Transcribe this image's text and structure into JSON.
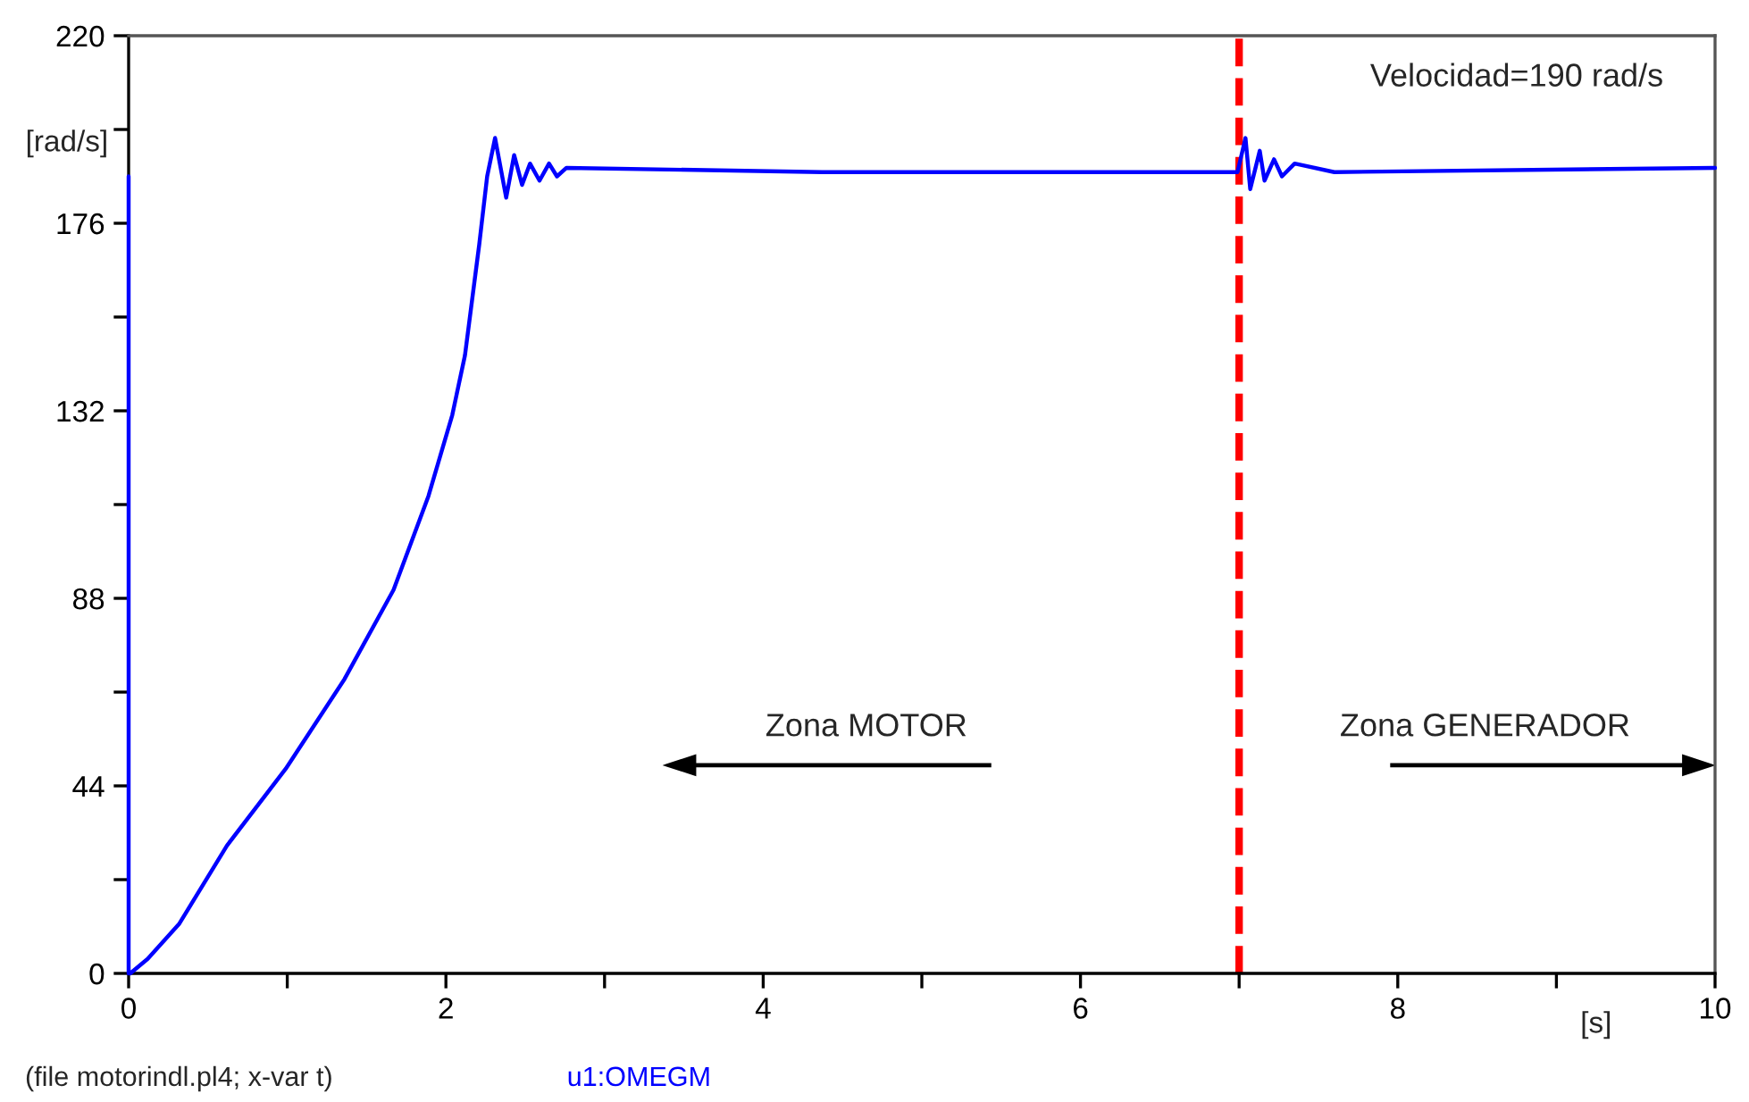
{
  "chart_data": {
    "type": "line",
    "ylabel": "[rad/s]",
    "xlabel": "[s]",
    "xlim": [
      0,
      10
    ],
    "ylim": [
      0,
      220
    ],
    "xticks": [
      0,
      {
        "value": 1,
        "label": null
      },
      2,
      {
        "value": 3,
        "label": null
      },
      4,
      {
        "value": 5,
        "label": null
      },
      6,
      {
        "value": 7,
        "label": null
      },
      8,
      {
        "value": 9,
        "label": null
      },
      10
    ],
    "yticks": [
      0,
      {
        "value": 22,
        "label": null
      },
      44,
      {
        "value": 66,
        "label": null
      },
      88,
      {
        "value": 110,
        "label": null
      },
      132,
      {
        "value": 154,
        "label": null
      },
      176,
      {
        "value": 198,
        "label": null
      },
      220
    ],
    "grid": false,
    "line_style": "solid",
    "marker": "none",
    "series": [
      {
        "name": "u1:OMEGM",
        "color": "#0000ff",
        "x": [
          0,
          0,
          0.01,
          0.12,
          0.32,
          0.62,
          0.99,
          1.36,
          1.67,
          1.89,
          2.04,
          2.12,
          2.21,
          2.26,
          2.31,
          2.38,
          2.43,
          2.48,
          2.53,
          2.59,
          2.65,
          2.7,
          2.76,
          4.37,
          6.99,
          7.04,
          7.07,
          7.13,
          7.16,
          7.22,
          7.27,
          7.35,
          7.6,
          10
        ],
        "values": [
          187,
          0,
          0,
          3.4,
          11.7,
          30,
          48,
          69,
          90,
          112,
          131,
          145,
          171,
          187,
          196,
          182,
          192,
          185,
          190,
          186,
          190,
          187,
          189,
          188,
          188,
          196,
          184,
          193,
          186,
          191,
          187,
          190,
          188,
          189
        ]
      }
    ],
    "ref_lines": [
      {
        "axis": "x",
        "value": 7,
        "color": "#ff0000",
        "line_style": "dashed"
      }
    ],
    "annotations": [
      "Velocidad=190 rad/s",
      "Zona MOTOR",
      "Zona GENERADOR",
      "(file motorindl.pl4; x-var t)"
    ]
  }
}
